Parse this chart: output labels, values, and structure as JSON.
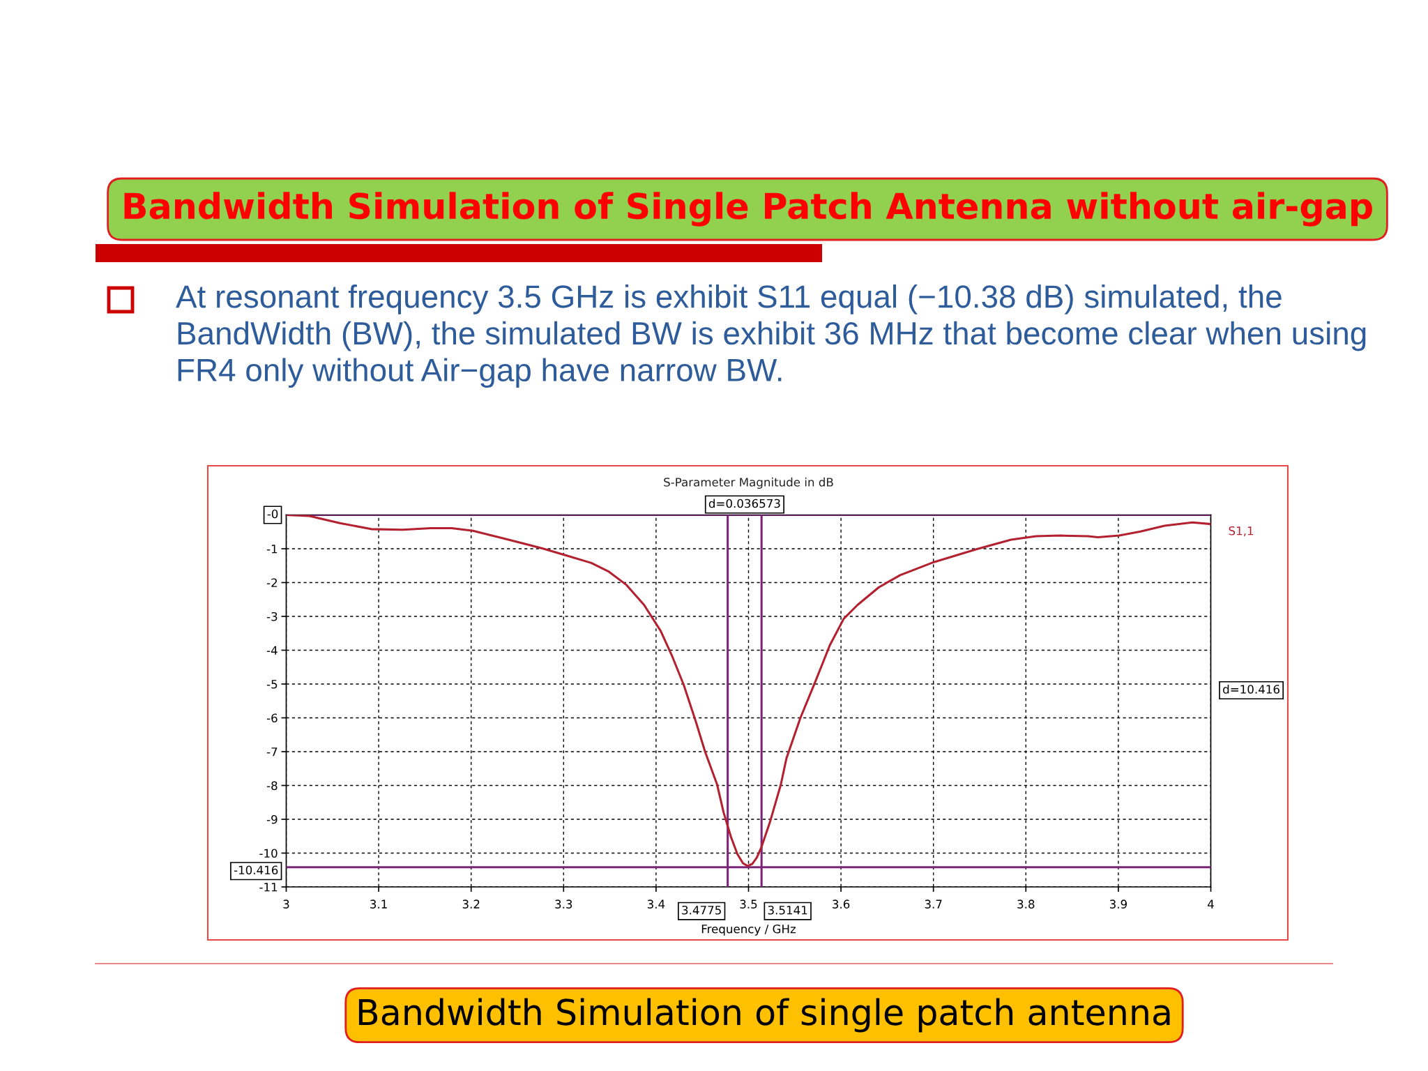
{
  "chart_data": {
    "type": "line",
    "title": "Bandwidth Simulation of Single Patch Antenna without air-gap",
    "subtitle": "S-Parameter Magnitude in dB",
    "xlabel": "Frequency / GHz",
    "x": [
      3.0,
      3.025,
      3.058,
      3.092,
      3.126,
      3.156,
      3.179,
      3.202,
      3.236,
      3.277,
      3.302,
      3.33,
      3.349,
      3.368,
      3.387,
      3.405,
      3.417,
      3.43,
      3.443,
      3.453,
      3.466,
      3.473,
      3.481,
      3.488,
      3.494,
      3.499,
      3.504,
      3.509,
      3.514,
      3.523,
      3.535,
      3.541,
      3.556,
      3.573,
      3.588,
      3.603,
      3.618,
      3.641,
      3.664,
      3.701,
      3.747,
      3.784,
      3.811,
      3.837,
      3.867,
      3.878,
      3.901,
      3.924,
      3.95,
      3.98,
      4.0
    ],
    "series": [
      {
        "name": "S1,1",
        "color": "#b3202f",
        "values": [
          0.0,
          -0.03,
          -0.24,
          -0.42,
          -0.44,
          -0.39,
          -0.39,
          -0.47,
          -0.7,
          -0.99,
          -1.19,
          -1.42,
          -1.68,
          -2.07,
          -2.66,
          -3.43,
          -4.15,
          -5.03,
          -6.11,
          -7.0,
          -7.97,
          -8.79,
          -9.52,
          -10.03,
          -10.3,
          -10.38,
          -10.32,
          -10.13,
          -9.82,
          -9.1,
          -7.97,
          -7.2,
          -6.01,
          -4.88,
          -3.85,
          -3.07,
          -2.66,
          -2.14,
          -1.78,
          -1.39,
          -1.01,
          -0.73,
          -0.63,
          -0.61,
          -0.63,
          -0.66,
          -0.61,
          -0.49,
          -0.32,
          -0.22,
          -0.27
        ]
      }
    ],
    "xlim": [
      3,
      4
    ],
    "xticks": [
      3,
      3.1,
      3.2,
      3.3,
      3.4,
      3.5,
      3.6,
      3.7,
      3.8,
      3.9,
      4
    ],
    "ylim": [
      -11,
      0
    ],
    "yticks": [
      -11,
      -10,
      -9,
      -8,
      -7,
      -6,
      -5,
      -4,
      -3,
      -2,
      -1
    ],
    "grid": true,
    "ref_lines": [
      {
        "axis": "y",
        "value": 0,
        "label": "-0",
        "color": "#7a2577"
      },
      {
        "axis": "y",
        "value": -10.416,
        "label": "-10.416",
        "color": "#7a2577"
      },
      {
        "axis": "x",
        "value": 3.4775,
        "label": "3.4775",
        "color": "#7a2577"
      },
      {
        "axis": "x",
        "value": 3.5141,
        "label": "3.5141",
        "color": "#7a2577"
      }
    ],
    "annotations": [
      "At resonant frequency 3.5 GHz is exhibit S11 equal (−10.38 dB) simulated, the BandWidth (BW), the simulated BW is exhibit 36 MHz that become clear when using FR4 only without Air−gap have narrow BW.",
      "Bandwidth Simulation of single patch antenna",
      {
        "text": "d=0.036573",
        "x": 3.4958,
        "y": 0
      },
      "d=10.416"
    ]
  }
}
